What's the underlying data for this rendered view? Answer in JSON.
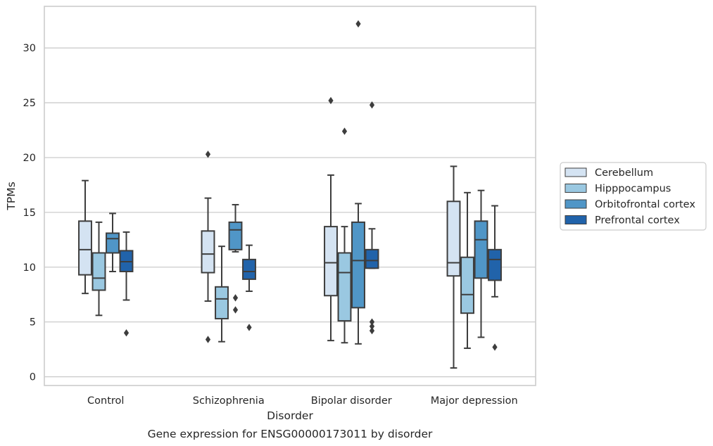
{
  "chart_data": {
    "type": "box",
    "title": "Gene expression for ENSG00000173011 by disorder",
    "xlabel": "Disorder",
    "ylabel": "TPMs",
    "ylim": [
      -0.8,
      33.8
    ],
    "yticks": [
      0,
      5,
      10,
      15,
      20,
      25,
      30
    ],
    "grid": true,
    "legend_position": "right",
    "categories": [
      "Control",
      "Schizophrenia",
      "Bipolar disorder",
      "Major depression"
    ],
    "series": [
      {
        "name": "Cerebellum",
        "color": "#d4e3f2",
        "boxes": [
          {
            "whisker_low": 7.6,
            "q1": 9.3,
            "median": 11.6,
            "q3": 14.2,
            "whisker_high": 17.9,
            "outliers": []
          },
          {
            "whisker_low": 6.9,
            "q1": 9.5,
            "median": 11.2,
            "q3": 13.3,
            "whisker_high": 16.3,
            "outliers": [
              20.3,
              3.4
            ]
          },
          {
            "whisker_low": 3.3,
            "q1": 7.4,
            "median": 10.4,
            "q3": 13.7,
            "whisker_high": 18.4,
            "outliers": [
              25.2
            ]
          },
          {
            "whisker_low": 0.8,
            "q1": 9.2,
            "median": 10.4,
            "q3": 16.0,
            "whisker_high": 19.2,
            "outliers": []
          }
        ]
      },
      {
        "name": "Hipppocampus",
        "color": "#9ac8e1",
        "boxes": [
          {
            "whisker_low": 5.6,
            "q1": 7.9,
            "median": 9.0,
            "q3": 11.3,
            "whisker_high": 14.1,
            "outliers": []
          },
          {
            "whisker_low": 3.2,
            "q1": 5.3,
            "median": 7.1,
            "q3": 8.2,
            "whisker_high": 11.9,
            "outliers": []
          },
          {
            "whisker_low": 3.1,
            "q1": 5.1,
            "median": 9.5,
            "q3": 11.3,
            "whisker_high": 13.7,
            "outliers": [
              22.4
            ]
          },
          {
            "whisker_low": 2.6,
            "q1": 5.8,
            "median": 7.5,
            "q3": 10.9,
            "whisker_high": 16.8,
            "outliers": []
          }
        ]
      },
      {
        "name": "Orbitofrontal cortex",
        "color": "#5096c7",
        "boxes": [
          {
            "whisker_low": 9.6,
            "q1": 11.3,
            "median": 12.6,
            "q3": 13.1,
            "whisker_high": 14.9,
            "outliers": []
          },
          {
            "whisker_low": 11.4,
            "q1": 11.6,
            "median": 13.4,
            "q3": 14.1,
            "whisker_high": 15.7,
            "outliers": [
              7.2,
              6.1
            ]
          },
          {
            "whisker_low": 3.0,
            "q1": 6.3,
            "median": 10.6,
            "q3": 14.1,
            "whisker_high": 15.8,
            "outliers": [
              32.2
            ]
          },
          {
            "whisker_low": 3.6,
            "q1": 9.0,
            "median": 12.5,
            "q3": 14.2,
            "whisker_high": 17.0,
            "outliers": []
          }
        ]
      },
      {
        "name": "Prefrontal cortex",
        "color": "#2163aa",
        "boxes": [
          {
            "whisker_low": 7.0,
            "q1": 9.6,
            "median": 10.5,
            "q3": 11.5,
            "whisker_high": 13.2,
            "outliers": [
              4.0
            ]
          },
          {
            "whisker_low": 7.8,
            "q1": 8.9,
            "median": 9.6,
            "q3": 10.7,
            "whisker_high": 12.0,
            "outliers": [
              4.5
            ]
          },
          {
            "whisker_low": 9.9,
            "q1": 9.9,
            "median": 10.6,
            "q3": 11.6,
            "whisker_high": 13.5,
            "outliers": [
              24.8,
              5.0,
              4.6,
              4.2
            ]
          },
          {
            "whisker_low": 7.3,
            "q1": 8.8,
            "median": 10.7,
            "q3": 11.6,
            "whisker_high": 15.6,
            "outliers": [
              2.7
            ]
          }
        ]
      }
    ]
  }
}
